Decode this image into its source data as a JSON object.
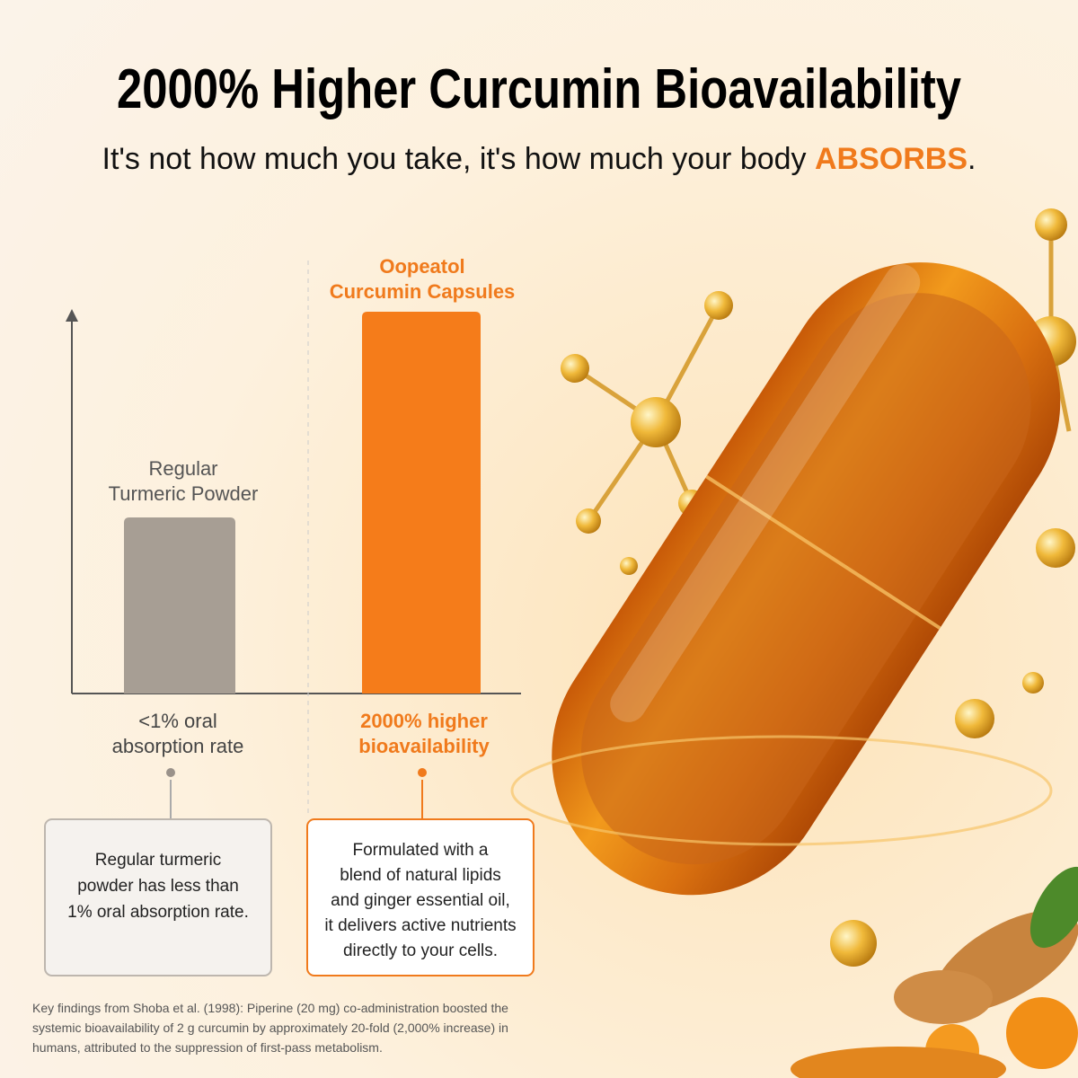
{
  "header": {
    "title": "2000% Higher Curcumin Bioavailability",
    "subtitle": {
      "text": "It's not how much you take, it's how much your body ",
      "emphasis": "ABSORBS",
      "end": "."
    }
  },
  "comparison": {
    "left": {
      "label": [
        "Regular",
        "Turmeric Powder"
      ],
      "caption": [
        "<1% oral",
        "absorption rate"
      ],
      "note": [
        "Regular turmeric",
        "powder has less than",
        "1% oral absorption rate."
      ]
    },
    "right": {
      "label": [
        "Oopeatol",
        "Curcumin Capsules"
      ],
      "caption": [
        "2000% higher",
        "bioavailability"
      ],
      "note": [
        "Formulated with a",
        "blend of natural lipids",
        "and ginger essential oil,",
        "it delivers active nutrients",
        "directly to your cells."
      ]
    }
  },
  "footnote": [
    "Key findings from Shoba et al. (1998): Piperine (20 mg) co-administration boosted the",
    "systemic bioavailability of 2 g curcumin by approximately 20-fold (2,000% increase) in",
    "humans, attributed to the suppression of first-pass metabolism."
  ]
}
